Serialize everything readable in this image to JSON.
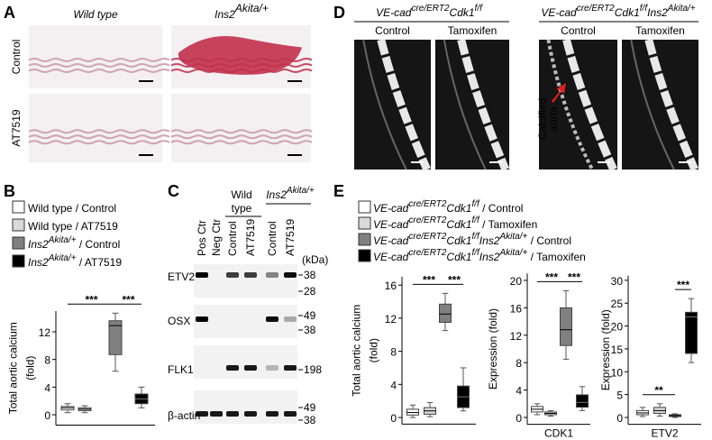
{
  "panel_a": {
    "label": "A",
    "columns": [
      [
        {
          "i": "Wild type"
        }
      ],
      [
        {
          "i": "Ins2"
        },
        {
          "sup": "Akita/+"
        }
      ]
    ],
    "rows": [
      "Control",
      "AT7519"
    ]
  },
  "panel_d": {
    "label": "D",
    "groups": [
      [
        {
          "i": "VE-cad"
        },
        {
          "sup": "cre/ERT2"
        },
        {
          "i": "Cdk1"
        },
        {
          "sup": "f/f"
        }
      ],
      [
        {
          "i": "VE-cad"
        },
        {
          "sup": "cre/ERT2"
        },
        {
          "i": "Cdk1"
        },
        {
          "sup": "f/f"
        },
        {
          "i": "Ins2"
        },
        {
          "sup": "Akita/+"
        }
      ]
    ],
    "columns": [
      "Control",
      "Tamoxifen",
      "Control",
      "Tamoxifen"
    ],
    "annotation": [
      "Calcified",
      "aorta"
    ]
  },
  "panel_b": {
    "label": "B",
    "legend": [
      [
        {
          "t": "Wild type"
        },
        {
          "t": " / Control"
        }
      ],
      [
        {
          "t": "Wild type"
        },
        {
          "t": " / AT7519"
        }
      ],
      [
        {
          "i": "Ins2"
        },
        {
          "sup": "Akita/+"
        },
        {
          "t": " / Control"
        }
      ],
      [
        {
          "i": "Ins2"
        },
        {
          "sup": "Akita/+"
        },
        {
          "t": " / AT7519"
        }
      ]
    ],
    "colors": [
      "#ffffff",
      "#d9d9d9",
      "#808080",
      "#000000"
    ],
    "plot": {
      "ylabel": [
        "Total aortic calcium",
        "(fold)"
      ],
      "ylim": [
        -1.5,
        15
      ],
      "yticks": [
        0,
        4,
        8,
        12
      ],
      "boxes": [
        {
          "min": 0.3,
          "q1": 0.7,
          "median": 1,
          "q3": 1.2,
          "max": 1.6
        },
        {
          "min": 0.3,
          "q1": 0.6,
          "median": 0.8,
          "q3": 1,
          "max": 1.3
        },
        {
          "min": 6.3,
          "q1": 8.7,
          "median": 12.9,
          "q3": 13.6,
          "max": 14.7
        },
        {
          "min": 1,
          "q1": 1.6,
          "median": 2.3,
          "q3": 3,
          "max": 4
        }
      ],
      "significance": [
        "***",
        "***"
      ]
    }
  },
  "panel_c": {
    "label": "C",
    "lanes": [
      "Pos Ctr",
      "Neg Ctr",
      "Control",
      "AT7519",
      "Control",
      "AT7519"
    ],
    "group_wild": [
      "Wild",
      "type"
    ],
    "group_akita": [
      {
        "i": "Ins2"
      },
      {
        "sup": "Akita/+"
      }
    ],
    "unit": "(kDa)",
    "blots": [
      {
        "name": "ETV2",
        "mw": [
          38,
          28
        ]
      },
      {
        "name": "OSX",
        "mw": [
          49,
          38
        ]
      },
      {
        "name": "FLK1",
        "mw": [
          198
        ]
      },
      {
        "name": "β-actin",
        "mw": [
          49,
          38
        ]
      }
    ]
  },
  "panel_e": {
    "label": "E",
    "legend": [
      [
        {
          "i": "VE-cad"
        },
        {
          "sup": "cre/ERT2"
        },
        {
          "i": "Cdk1"
        },
        {
          "sup": "f/f"
        },
        {
          "t": " / Control"
        }
      ],
      [
        {
          "i": "VE-cad"
        },
        {
          "sup": "cre/ERT2"
        },
        {
          "i": "Cdk1"
        },
        {
          "sup": "f/f"
        },
        {
          "t": " / Tamoxifen"
        }
      ],
      [
        {
          "i": "VE-cad"
        },
        {
          "sup": "cre/ERT2"
        },
        {
          "i": "Cdk1"
        },
        {
          "sup": "f/f"
        },
        {
          "i": "Ins2"
        },
        {
          "sup": "Akita/+"
        },
        {
          "t": " / Control"
        }
      ],
      [
        {
          "i": "VE-cad"
        },
        {
          "sup": "cre/ERT2"
        },
        {
          "i": "Cdk1"
        },
        {
          "sup": "f/f"
        },
        {
          "i": "Ins2"
        },
        {
          "sup": "Akita/+"
        },
        {
          "t": " / Tamoxifen"
        }
      ]
    ],
    "colors": [
      "#ffffff",
      "#d9d9d9",
      "#808080",
      "#000000"
    ],
    "plots": [
      {
        "ylabel": [
          "Total aortic calcium",
          "(fold)"
        ],
        "ylim": [
          -0.8,
          17
        ],
        "yticks": [
          0,
          4,
          8,
          12,
          16
        ],
        "boxes": [
          {
            "min": 0,
            "q1": 0.3,
            "median": 0.6,
            "q3": 1,
            "max": 1.5
          },
          {
            "min": 0.1,
            "q1": 0.4,
            "median": 0.8,
            "q3": 1.2,
            "max": 1.8
          },
          {
            "min": 10.5,
            "q1": 11.5,
            "median": 12.5,
            "q3": 13.7,
            "max": 15
          },
          {
            "min": 0.8,
            "q1": 1.2,
            "median": 2.5,
            "q3": 3.8,
            "max": 6
          }
        ],
        "significance": [
          "***",
          "***"
        ]
      },
      {
        "ylabel": [
          "Expression (fold)"
        ],
        "xlabel": "CDK1",
        "ylim": [
          -1,
          21
        ],
        "yticks": [
          0,
          4,
          8,
          12,
          16,
          20
        ],
        "boxes": [
          {
            "min": 0.4,
            "q1": 0.8,
            "median": 1.2,
            "q3": 1.6,
            "max": 2
          },
          {
            "min": 0.2,
            "q1": 0.4,
            "median": 0.6,
            "q3": 0.8,
            "max": 1
          },
          {
            "min": 8.5,
            "q1": 10.5,
            "median": 12.8,
            "q3": 16,
            "max": 18.5
          },
          {
            "min": 1,
            "q1": 1.5,
            "median": 2.2,
            "q3": 3.3,
            "max": 4.5
          }
        ],
        "significance": [
          "***",
          "***"
        ]
      },
      {
        "ylabel": [
          "Expression (fold)"
        ],
        "xlabel": "ETV2",
        "ylim": [
          -1.5,
          31
        ],
        "yticks": [
          0,
          5,
          10,
          15,
          20,
          25,
          30
        ],
        "boxes": [
          {
            "min": 0.2,
            "q1": 0.6,
            "median": 1,
            "q3": 1.5,
            "max": 2.2
          },
          {
            "min": 0.3,
            "q1": 0.9,
            "median": 1.5,
            "q3": 2.2,
            "max": 3
          },
          {
            "min": 0,
            "q1": 0.2,
            "median": 0.4,
            "q3": 0.6,
            "max": 0.8
          },
          {
            "min": 12,
            "q1": 14,
            "median": 22,
            "q3": 23,
            "max": 26
          }
        ],
        "significance": [
          "**",
          "***"
        ]
      }
    ]
  }
}
